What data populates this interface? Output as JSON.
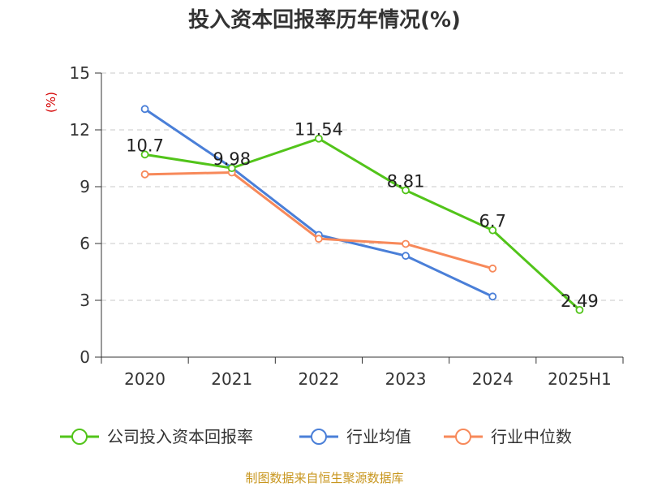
{
  "chart_data": {
    "type": "line",
    "title": "投入资本回报率历年情况(%)",
    "ylabel": "(%)",
    "xlabel": "",
    "categories": [
      "2020",
      "2021",
      "2022",
      "2023",
      "2024",
      "2025H1"
    ],
    "ylim": [
      0,
      15
    ],
    "yticks": [
      0,
      3,
      6,
      9,
      12,
      15
    ],
    "grid": "horizontal-dashed",
    "legend_position": "bottom",
    "series": [
      {
        "name": "公司投入资本回报率",
        "color": "#52c41a",
        "values": [
          10.7,
          9.98,
          11.54,
          8.81,
          6.7,
          2.49
        ],
        "labels": [
          "10.7",
          "9.98",
          "11.54",
          "8.81",
          "6.7",
          "2.49"
        ]
      },
      {
        "name": "行业均值",
        "color": "#4a7fd8",
        "values": [
          13.1,
          10.0,
          6.45,
          5.35,
          3.2,
          null
        ]
      },
      {
        "name": "行业中位数",
        "color": "#f7895a",
        "values": [
          9.65,
          9.75,
          6.25,
          5.98,
          4.68,
          null
        ]
      }
    ]
  },
  "source": "制图数据来自恒生聚源数据库"
}
